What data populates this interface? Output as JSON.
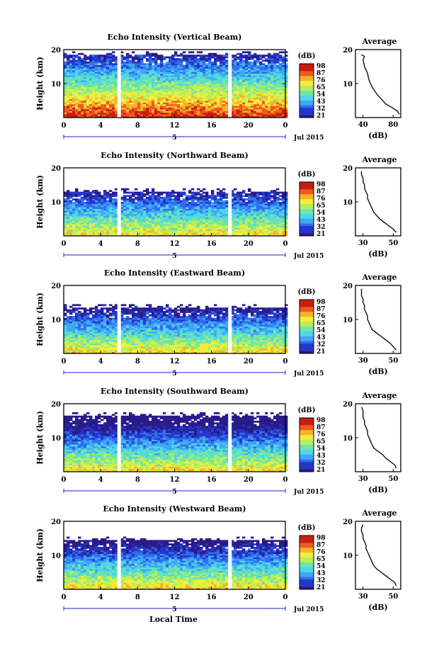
{
  "page": {
    "xlabel": "Local Time"
  },
  "chart_data": [
    {
      "type": "heatmap",
      "title": "Echo Intensity (Vertical Beam)",
      "ylabel": "Height (km)",
      "xticks": [
        "0",
        "4",
        "8",
        "12",
        "16",
        "20",
        "0"
      ],
      "date_label": "Jul 2015",
      "day_label": "5",
      "yticks": [
        "10",
        "20"
      ],
      "colorbar": {
        "unit": "(dB)",
        "labels": [
          "98",
          "87",
          "76",
          "65",
          "54",
          "43",
          "32",
          "21"
        ]
      },
      "missing_time_hours": [
        6.0,
        18.0
      ],
      "top_height_km": 18.0,
      "average": {
        "title": "Average",
        "xlabel": "(dB)",
        "xticks": [
          "40",
          "80"
        ],
        "xlim": [
          30,
          90
        ],
        "ylim": [
          0,
          20
        ],
        "profile": [
          [
            88,
            1
          ],
          [
            85,
            2
          ],
          [
            78,
            3
          ],
          [
            70,
            4
          ],
          [
            66,
            5
          ],
          [
            62,
            6
          ],
          [
            58,
            7
          ],
          [
            55,
            8
          ],
          [
            52,
            9
          ],
          [
            50,
            10
          ],
          [
            48,
            11
          ],
          [
            47,
            12
          ],
          [
            46,
            13
          ],
          [
            44,
            14
          ],
          [
            42,
            15
          ],
          [
            41,
            16
          ],
          [
            40,
            17
          ],
          [
            42,
            18
          ],
          [
            38,
            18.5
          ]
        ]
      }
    },
    {
      "type": "heatmap",
      "title": "Echo Intensity (Northward Beam)",
      "ylabel": "Height (km)",
      "xticks": [
        "0",
        "4",
        "8",
        "12",
        "16",
        "20",
        "0"
      ],
      "date_label": "Jul 2015",
      "day_label": "5",
      "yticks": [
        "10",
        "20"
      ],
      "colorbar": {
        "unit": "(dB)",
        "labels": [
          "98",
          "87",
          "76",
          "65",
          "54",
          "43",
          "32",
          "21"
        ]
      },
      "missing_time_hours": [
        6.0,
        18.0
      ],
      "top_height_km": 12.5,
      "average": {
        "title": "Average",
        "xlabel": "(dB)",
        "xticks": [
          "30",
          "50"
        ],
        "xlim": [
          25,
          55
        ],
        "ylim": [
          0,
          20
        ],
        "profile": [
          [
            52,
            1
          ],
          [
            50,
            2
          ],
          [
            47,
            3
          ],
          [
            44,
            4
          ],
          [
            41,
            5
          ],
          [
            39,
            6
          ],
          [
            37,
            7
          ],
          [
            36,
            8
          ],
          [
            35,
            9
          ],
          [
            34,
            10
          ],
          [
            33,
            11
          ],
          [
            33,
            12
          ],
          [
            32,
            13
          ],
          [
            31,
            14
          ],
          [
            31,
            15
          ],
          [
            30,
            16
          ],
          [
            30,
            17
          ],
          [
            29,
            18
          ],
          [
            29,
            19
          ]
        ]
      }
    },
    {
      "type": "heatmap",
      "title": "Echo Intensity (Eastward Beam)",
      "ylabel": "Height (km)",
      "xticks": [
        "0",
        "4",
        "8",
        "12",
        "16",
        "20",
        "0"
      ],
      "date_label": "Jul 2015",
      "day_label": "5",
      "yticks": [
        "10",
        "20"
      ],
      "colorbar": {
        "unit": "(dB)",
        "labels": [
          "98",
          "87",
          "76",
          "65",
          "54",
          "43",
          "32",
          "21"
        ]
      },
      "missing_time_hours": [
        6.0,
        18.0
      ],
      "top_height_km": 13.0,
      "average": {
        "title": "Average",
        "xlabel": "(dB)",
        "xticks": [
          "30",
          "50"
        ],
        "xlim": [
          25,
          55
        ],
        "ylim": [
          0,
          20
        ],
        "profile": [
          [
            52,
            1
          ],
          [
            50,
            2
          ],
          [
            48,
            3
          ],
          [
            45,
            4
          ],
          [
            42,
            5
          ],
          [
            39,
            6
          ],
          [
            36,
            7
          ],
          [
            35,
            8
          ],
          [
            34,
            9
          ],
          [
            33,
            10
          ],
          [
            33,
            11
          ],
          [
            32,
            12
          ],
          [
            31,
            13
          ],
          [
            31,
            14
          ],
          [
            30,
            15
          ],
          [
            30,
            16
          ],
          [
            29,
            17
          ],
          [
            29,
            18
          ],
          [
            29,
            19
          ]
        ]
      }
    },
    {
      "type": "heatmap",
      "title": "Echo Intensity (Southward Beam)",
      "ylabel": "Height (km)",
      "xticks": [
        "0",
        "4",
        "8",
        "12",
        "16",
        "20",
        "0"
      ],
      "date_label": "Jul 2015",
      "day_label": "5",
      "yticks": [
        "10",
        "20"
      ],
      "colorbar": {
        "unit": "(dB)",
        "labels": [
          "98",
          "87",
          "76",
          "65",
          "54",
          "43",
          "32",
          "21"
        ]
      },
      "missing_time_hours": [
        6.0,
        18.0
      ],
      "top_height_km": 16.0,
      "average": {
        "title": "Average",
        "xlabel": "(dB)",
        "xticks": [
          "30",
          "50"
        ],
        "xlim": [
          25,
          55
        ],
        "ylim": [
          0,
          20
        ],
        "profile": [
          [
            52,
            1
          ],
          [
            51,
            2
          ],
          [
            48,
            3
          ],
          [
            45,
            4
          ],
          [
            43,
            5
          ],
          [
            40,
            6
          ],
          [
            37,
            7
          ],
          [
            36,
            8
          ],
          [
            35,
            9
          ],
          [
            34,
            10
          ],
          [
            33,
            11
          ],
          [
            33,
            12
          ],
          [
            32,
            13
          ],
          [
            31,
            14
          ],
          [
            31,
            15
          ],
          [
            30,
            16
          ],
          [
            30,
            17
          ],
          [
            30,
            18
          ],
          [
            29,
            19
          ]
        ]
      }
    },
    {
      "type": "heatmap",
      "title": "Echo Intensity (Westward Beam)",
      "ylabel": "Height (km)",
      "xticks": [
        "0",
        "4",
        "8",
        "12",
        "16",
        "20",
        "0"
      ],
      "date_label": "Jul 2015",
      "day_label": "5",
      "yticks": [
        "10",
        "20"
      ],
      "colorbar": {
        "unit": "(dB)",
        "labels": [
          "98",
          "87",
          "76",
          "65",
          "54",
          "43",
          "32",
          "21"
        ]
      },
      "missing_time_hours": [
        6.0,
        18.0
      ],
      "top_height_km": 14.0,
      "average": {
        "title": "Average",
        "xlabel": "(dB)",
        "xticks": [
          "30",
          "50"
        ],
        "xlim": [
          25,
          55
        ],
        "ylim": [
          0,
          20
        ],
        "profile": [
          [
            52,
            1
          ],
          [
            51,
            2
          ],
          [
            48,
            3
          ],
          [
            45,
            4
          ],
          [
            42,
            5
          ],
          [
            39,
            6
          ],
          [
            37,
            7
          ],
          [
            36,
            8
          ],
          [
            35,
            9
          ],
          [
            34,
            10
          ],
          [
            33,
            11
          ],
          [
            32,
            12
          ],
          [
            32,
            13
          ],
          [
            31,
            14
          ],
          [
            30,
            15
          ],
          [
            30,
            16
          ],
          [
            29,
            17
          ],
          [
            29,
            18
          ],
          [
            30,
            19
          ]
        ]
      }
    }
  ]
}
